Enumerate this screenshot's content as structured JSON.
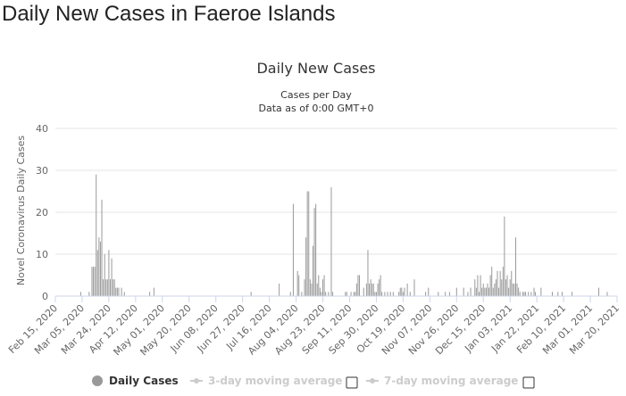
{
  "page": {
    "title": "Daily New Cases in Faeroe Islands"
  },
  "chart_data": {
    "type": "bar",
    "title": "Daily New Cases",
    "subtitle": "Cases per Day",
    "subtitle2": "Data as of 0:00 GMT+0",
    "ylabel": "Novel Coronavirus Daily Cases",
    "xlabel": "",
    "ylim": [
      0,
      40
    ],
    "yticks": [
      0,
      10,
      20,
      30,
      40
    ],
    "grid": true,
    "legend_position": "bottom",
    "x_tick_labels": [
      "Feb 15, 2020",
      "Mar 05, 2020",
      "Mar 24, 2020",
      "Apr 12, 2020",
      "May 01, 2020",
      "May 20, 2020",
      "Jun 08, 2020",
      "Jun 27, 2020",
      "Jul 16, 2020",
      "Aug 04, 2020",
      "Aug 23, 2020",
      "Sep 11, 2020",
      "Sep 30, 2020",
      "Oct 19, 2020",
      "Nov 07, 2020",
      "Nov 26, 2020",
      "Dec 15, 2020",
      "Jan 03, 2021",
      "Jan 22, 2021",
      "Feb 10, 2021",
      "Mar 01, 2021",
      "Mar 20, 2021"
    ],
    "x_range": [
      "2020-02-15",
      "2021-03-20"
    ],
    "bar_color": "#999999",
    "series": [
      {
        "name": "Daily Cases",
        "points": [
          [
            "2020-03-04",
            1
          ],
          [
            "2020-03-10",
            1
          ],
          [
            "2020-03-12",
            7
          ],
          [
            "2020-03-13",
            7
          ],
          [
            "2020-03-14",
            7
          ],
          [
            "2020-03-15",
            29
          ],
          [
            "2020-03-16",
            11
          ],
          [
            "2020-03-17",
            14
          ],
          [
            "2020-03-18",
            13
          ],
          [
            "2020-03-19",
            23
          ],
          [
            "2020-03-20",
            4
          ],
          [
            "2020-03-21",
            10
          ],
          [
            "2020-03-22",
            4
          ],
          [
            "2020-03-23",
            4
          ],
          [
            "2020-03-24",
            11
          ],
          [
            "2020-03-25",
            4
          ],
          [
            "2020-03-26",
            9
          ],
          [
            "2020-03-27",
            4
          ],
          [
            "2020-03-28",
            4
          ],
          [
            "2020-03-29",
            2
          ],
          [
            "2020-03-30",
            2
          ],
          [
            "2020-03-31",
            2
          ],
          [
            "2020-04-02",
            2
          ],
          [
            "2020-04-04",
            1
          ],
          [
            "2020-04-22",
            1
          ],
          [
            "2020-04-25",
            2
          ],
          [
            "2020-07-03",
            1
          ],
          [
            "2020-07-23",
            3
          ],
          [
            "2020-07-31",
            1
          ],
          [
            "2020-08-02",
            22
          ],
          [
            "2020-08-05",
            6
          ],
          [
            "2020-08-06",
            5
          ],
          [
            "2020-08-08",
            1
          ],
          [
            "2020-08-10",
            4
          ],
          [
            "2020-08-11",
            14
          ],
          [
            "2020-08-12",
            25
          ],
          [
            "2020-08-13",
            25
          ],
          [
            "2020-08-14",
            4
          ],
          [
            "2020-08-15",
            3
          ],
          [
            "2020-08-16",
            12
          ],
          [
            "2020-08-17",
            21
          ],
          [
            "2020-08-18",
            22
          ],
          [
            "2020-08-19",
            3
          ],
          [
            "2020-08-20",
            5
          ],
          [
            "2020-08-21",
            2
          ],
          [
            "2020-08-22",
            1
          ],
          [
            "2020-08-23",
            4
          ],
          [
            "2020-08-24",
            5
          ],
          [
            "2020-08-25",
            1
          ],
          [
            "2020-08-27",
            1
          ],
          [
            "2020-08-29",
            26
          ],
          [
            "2020-08-30",
            1
          ],
          [
            "2020-09-08",
            1
          ],
          [
            "2020-09-09",
            1
          ],
          [
            "2020-09-12",
            1
          ],
          [
            "2020-09-14",
            1
          ],
          [
            "2020-09-15",
            1
          ],
          [
            "2020-09-16",
            3
          ],
          [
            "2020-09-17",
            5
          ],
          [
            "2020-09-18",
            5
          ],
          [
            "2020-09-21",
            2
          ],
          [
            "2020-09-23",
            3
          ],
          [
            "2020-09-24",
            11
          ],
          [
            "2020-09-25",
            3
          ],
          [
            "2020-09-26",
            4
          ],
          [
            "2020-09-27",
            3
          ],
          [
            "2020-09-28",
            3
          ],
          [
            "2020-09-29",
            1
          ],
          [
            "2020-09-30",
            1
          ],
          [
            "2020-10-01",
            3
          ],
          [
            "2020-10-02",
            4
          ],
          [
            "2020-10-03",
            5
          ],
          [
            "2020-10-04",
            1
          ],
          [
            "2020-10-06",
            1
          ],
          [
            "2020-10-08",
            1
          ],
          [
            "2020-10-10",
            1
          ],
          [
            "2020-10-12",
            1
          ],
          [
            "2020-10-16",
            1
          ],
          [
            "2020-10-17",
            2
          ],
          [
            "2020-10-18",
            2
          ],
          [
            "2020-10-19",
            1
          ],
          [
            "2020-10-20",
            2
          ],
          [
            "2020-10-22",
            3
          ],
          [
            "2020-10-24",
            1
          ],
          [
            "2020-10-27",
            4
          ],
          [
            "2020-11-04",
            1
          ],
          [
            "2020-11-06",
            2
          ],
          [
            "2020-11-13",
            1
          ],
          [
            "2020-11-18",
            1
          ],
          [
            "2020-11-21",
            1
          ],
          [
            "2020-11-26",
            2
          ],
          [
            "2020-12-01",
            2
          ],
          [
            "2020-12-04",
            1
          ],
          [
            "2020-12-06",
            2
          ],
          [
            "2020-12-09",
            4
          ],
          [
            "2020-12-10",
            2
          ],
          [
            "2020-12-11",
            5
          ],
          [
            "2020-12-12",
            1
          ],
          [
            "2020-12-13",
            5
          ],
          [
            "2020-12-14",
            2
          ],
          [
            "2020-12-15",
            3
          ],
          [
            "2020-12-16",
            2
          ],
          [
            "2020-12-17",
            2
          ],
          [
            "2020-12-18",
            3
          ],
          [
            "2020-12-19",
            2
          ],
          [
            "2020-12-20",
            5
          ],
          [
            "2020-12-21",
            7
          ],
          [
            "2020-12-22",
            2
          ],
          [
            "2020-12-23",
            3
          ],
          [
            "2020-12-24",
            4
          ],
          [
            "2020-12-25",
            6
          ],
          [
            "2020-12-26",
            2
          ],
          [
            "2020-12-27",
            6
          ],
          [
            "2020-12-28",
            4
          ],
          [
            "2020-12-29",
            7
          ],
          [
            "2020-12-30",
            19
          ],
          [
            "2020-12-31",
            4
          ],
          [
            "2021-01-01",
            5
          ],
          [
            "2021-01-02",
            2
          ],
          [
            "2021-01-03",
            4
          ],
          [
            "2021-01-04",
            6
          ],
          [
            "2021-01-05",
            3
          ],
          [
            "2021-01-06",
            3
          ],
          [
            "2021-01-07",
            14
          ],
          [
            "2021-01-08",
            3
          ],
          [
            "2021-01-09",
            2
          ],
          [
            "2021-01-10",
            1
          ],
          [
            "2021-01-12",
            1
          ],
          [
            "2021-01-13",
            1
          ],
          [
            "2021-01-14",
            1
          ],
          [
            "2021-01-16",
            1
          ],
          [
            "2021-01-18",
            1
          ],
          [
            "2021-01-20",
            2
          ],
          [
            "2021-01-21",
            1
          ],
          [
            "2021-01-25",
            2
          ],
          [
            "2021-02-02",
            1
          ],
          [
            "2021-02-06",
            1
          ],
          [
            "2021-02-09",
            1
          ],
          [
            "2021-02-16",
            1
          ],
          [
            "2021-03-07",
            2
          ],
          [
            "2021-03-13",
            1
          ]
        ]
      }
    ],
    "legend": [
      {
        "name": "Daily Cases",
        "marker": "circle",
        "color": "#999999",
        "active": true,
        "checkbox": false
      },
      {
        "name": "3-day moving average",
        "marker": "line",
        "color": "#cccccc",
        "active": false,
        "checkbox": true
      },
      {
        "name": "7-day moving average",
        "marker": "line",
        "color": "#cccccc",
        "active": false,
        "checkbox": true
      }
    ]
  }
}
